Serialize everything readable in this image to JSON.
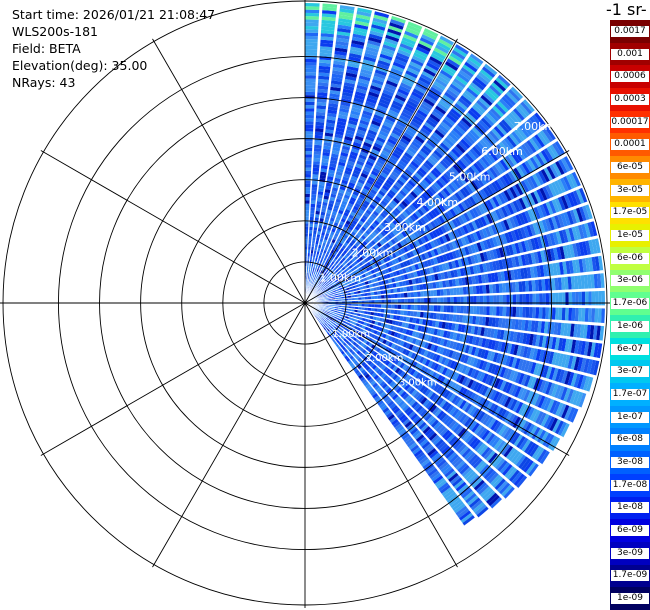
{
  "header": {
    "start_time": "Start time: 2026/01/21 21:08:47",
    "instrument": "WLS200s-181",
    "field": "Field: BETA",
    "elevation": "Elevation(deg): 35.00",
    "nrays": "NRays: 43"
  },
  "colorbar": {
    "title": "-1 sr-",
    "labels": [
      "0.0017",
      "0.001",
      "0.0006",
      "0.0003",
      "0.00017",
      "0.0001",
      "6e-05",
      "3e-05",
      "1.7e-05",
      "1e-05",
      "6e-06",
      "3e-06",
      "1.7e-06",
      "1e-06",
      "6e-07",
      "3e-07",
      "1.7e-07",
      "1e-07",
      "6e-08",
      "3e-08",
      "1.7e-08",
      "1e-08",
      "6e-09",
      "3e-09",
      "1.7e-09",
      "1e-09"
    ],
    "colors": [
      "#7a0000",
      "#a00000",
      "#c80000",
      "#e81000",
      "#ff3000",
      "#ff5a00",
      "#ff8a00",
      "#ffb400",
      "#ffe000",
      "#e8f000",
      "#c0ff40",
      "#90ff70",
      "#60ff90",
      "#30f0b0",
      "#00e0e0",
      "#00c8f0",
      "#00b0ff",
      "#0098ff",
      "#0080ff",
      "#0060ff",
      "#0040ff",
      "#0020f0",
      "#0000e0",
      "#0000c0",
      "#000090",
      "#000060"
    ]
  },
  "chart_data": {
    "type": "ppi",
    "field": "BETA",
    "elevation_deg": 35.0,
    "nrays": 43,
    "range_rings_km": [
      1,
      2,
      3,
      4,
      5,
      6
    ],
    "range_labels": [
      "1.00km",
      "2.00km",
      "3.00km",
      "4.00km",
      "5.00km",
      "6.00km",
      "7.00km",
      "8.00km"
    ],
    "azimuth_spokes_deg": [
      0,
      30,
      60,
      90,
      120,
      150,
      180,
      210,
      240,
      270,
      300,
      330
    ],
    "sector_deg": [
      0,
      145
    ],
    "max_range_km": 7.0
  }
}
